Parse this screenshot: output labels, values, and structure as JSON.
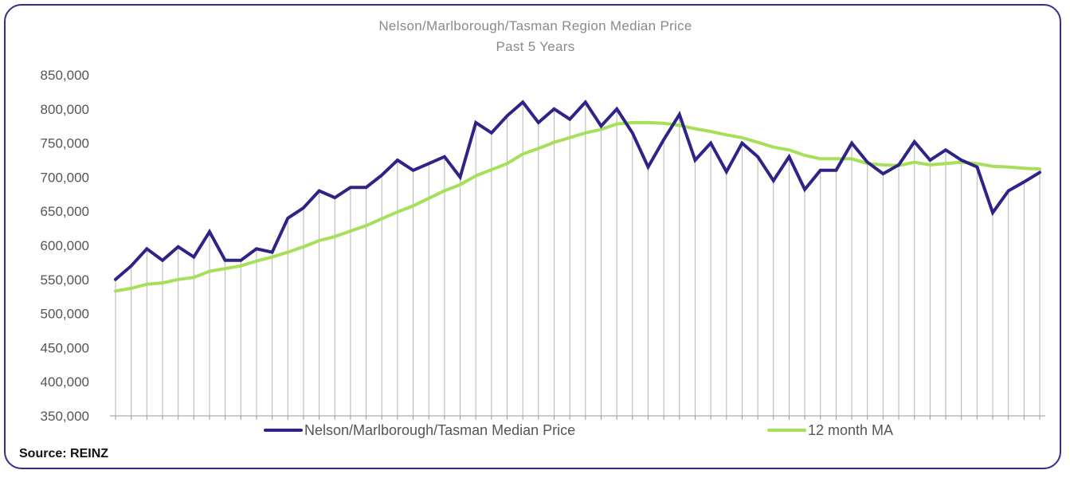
{
  "colors": {
    "price": "#2e2387",
    "ma": "#a6e05a",
    "frame": "#3a2a8c",
    "drop": "#b5b5b5"
  },
  "chart_data": {
    "type": "line",
    "title": "Nelson/Marlborough/Tasman  Region Median Price",
    "subtitle": "Past 5 Years",
    "ylim": [
      350000,
      850000
    ],
    "yticks": [
      "850,000",
      "800,000",
      "750,000",
      "700,000",
      "650,000",
      "600,000",
      "550,000",
      "500,000",
      "450,000",
      "400,000",
      "350,000"
    ],
    "drop_lines": true,
    "legend_position": "bottom",
    "series": [
      {
        "name": "Nelson/Marlborough/Tasman Median Price",
        "values": [
          550000,
          570000,
          595000,
          578000,
          598000,
          583000,
          620000,
          578000,
          578000,
          595000,
          590000,
          640000,
          655000,
          680000,
          670000,
          685000,
          685000,
          703000,
          725000,
          710000,
          720000,
          730000,
          700000,
          780000,
          765000,
          790000,
          810000,
          780000,
          800000,
          785000,
          810000,
          775000,
          800000,
          765000,
          715000,
          755000,
          792000,
          725000,
          750000,
          708000,
          750000,
          730000,
          695000,
          730000,
          682000,
          710000,
          710000,
          750000,
          722000,
          705000,
          718000,
          752000,
          725000,
          740000,
          725000,
          715000,
          648000,
          680000,
          693000,
          707000
        ]
      },
      {
        "name": "12 month MA",
        "values": [
          533000,
          537000,
          543000,
          545000,
          550000,
          553000,
          562000,
          566000,
          570000,
          577000,
          583000,
          590000,
          598000,
          607000,
          613000,
          621000,
          629000,
          639000,
          649000,
          658000,
          669000,
          680000,
          689000,
          702000,
          711000,
          720000,
          734000,
          742000,
          751000,
          758000,
          765000,
          770000,
          778000,
          780000,
          780000,
          779000,
          776000,
          771000,
          767000,
          762000,
          758000,
          751000,
          744000,
          740000,
          732000,
          727000,
          727000,
          727000,
          720000,
          718000,
          717000,
          722000,
          718000,
          720000,
          722000,
          720000,
          716000,
          715000,
          713000,
          712000
        ]
      }
    ]
  },
  "source": "Source: REINZ"
}
